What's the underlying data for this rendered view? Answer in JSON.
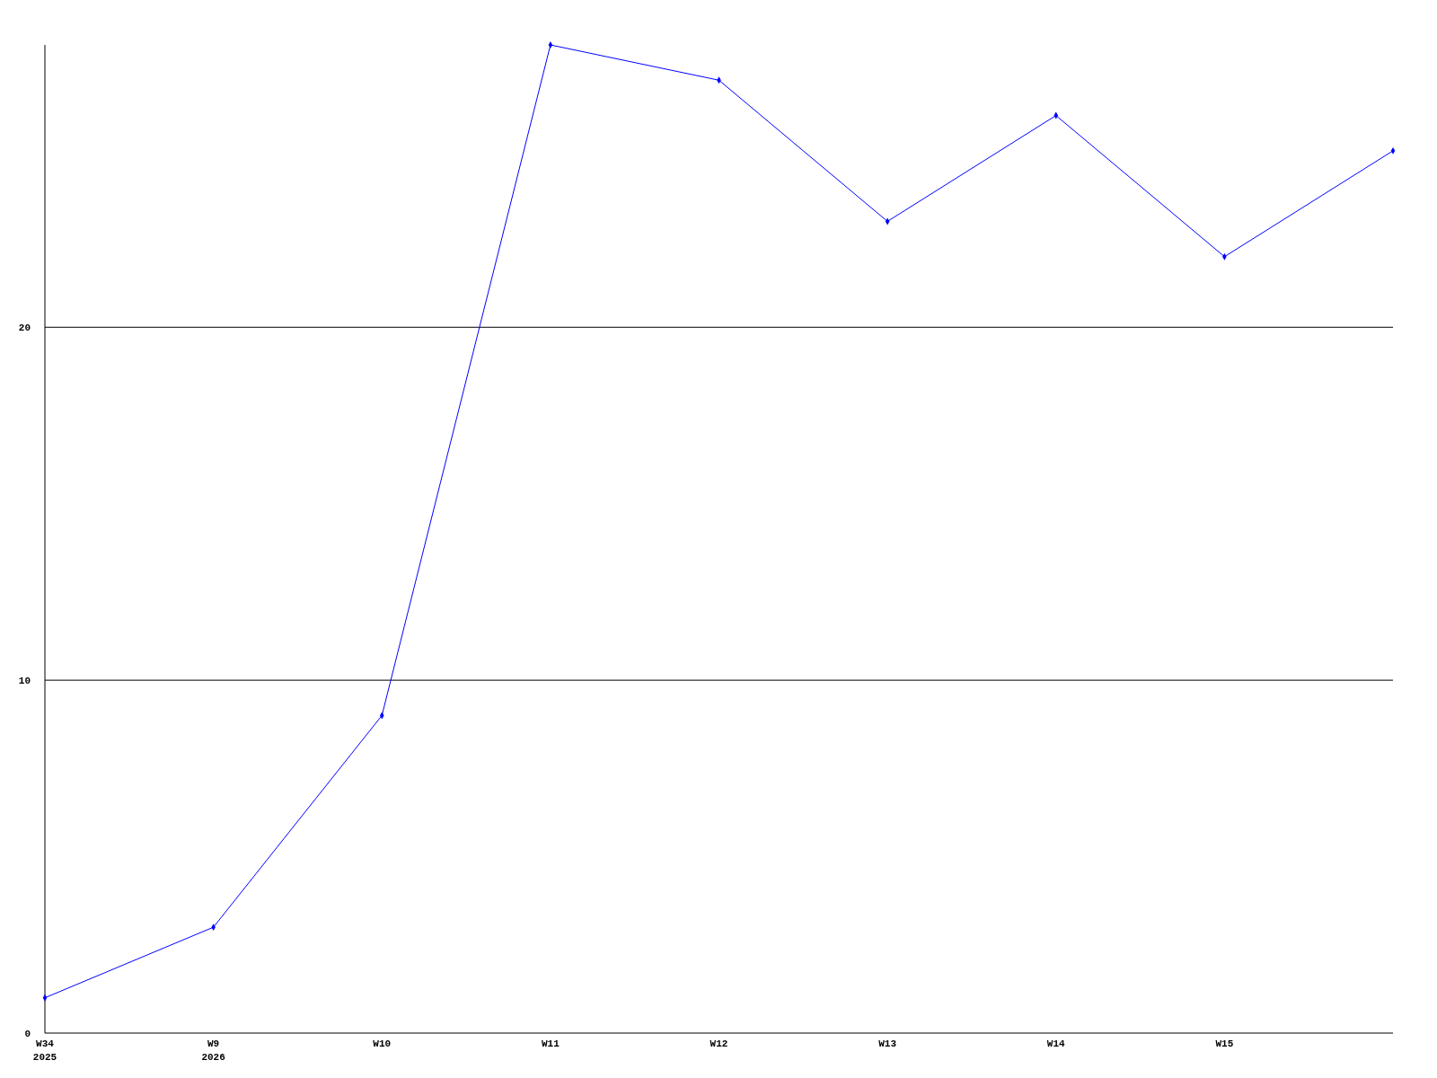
{
  "chart_data": {
    "type": "line",
    "categories": [
      "W34\n2025",
      "W9\n2026",
      "W10",
      "W11",
      "W12",
      "W13",
      "W14",
      "W15",
      null
    ],
    "series": [
      {
        "color": "#0000ff",
        "values": [
          1,
          3,
          9,
          28,
          27,
          23,
          26,
          22,
          25
        ]
      }
    ],
    "ylim": [
      0,
      28
    ],
    "yticks": [
      0,
      10,
      20
    ],
    "grid": "y",
    "marker": "diamond",
    "line_style": "solid"
  }
}
